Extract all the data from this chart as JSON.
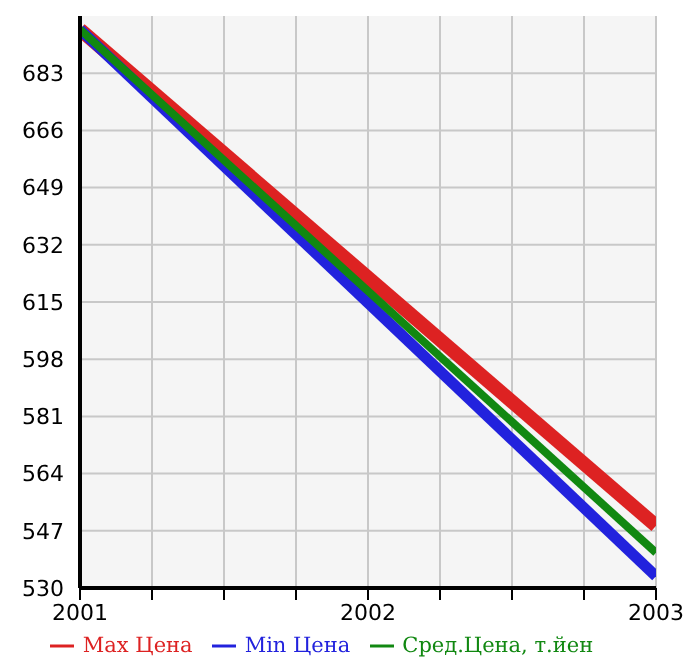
{
  "chart_data": {
    "type": "line",
    "x": [
      2001,
      2003
    ],
    "series": [
      {
        "name": "Max Цена",
        "color": "#dd2222",
        "values": [
          696,
          548.5
        ]
      },
      {
        "name": "Min Цена",
        "color": "#2222dd",
        "values": [
          696,
          533.5
        ]
      },
      {
        "name": "Сред.Цена, т.йен",
        "color": "#118811",
        "values": [
          696,
          540.5
        ]
      }
    ],
    "xlim": [
      2001,
      2003
    ],
    "xticks": [
      2001,
      {
        "value": 2001.25,
        "label": null
      },
      {
        "value": 2001.5,
        "label": null
      },
      {
        "value": 2001.75,
        "label": null
      },
      2002,
      {
        "value": 2002.25,
        "label": null
      },
      {
        "value": 2002.5,
        "label": null
      },
      {
        "value": 2002.75,
        "label": null
      },
      2003
    ],
    "ylim": [
      530,
      700
    ],
    "yticks": [
      530,
      547,
      564,
      581,
      598,
      615,
      632,
      649,
      666,
      683
    ],
    "grid": true,
    "legend": "bottom",
    "marker": "none",
    "line_style": "solid"
  }
}
